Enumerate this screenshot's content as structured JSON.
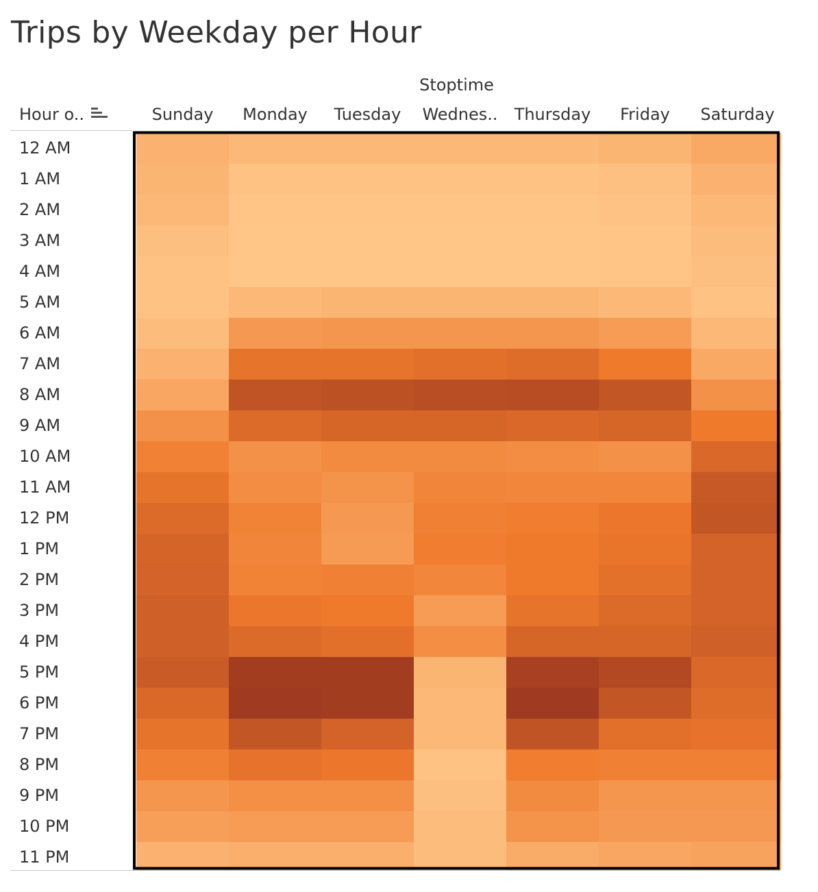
{
  "title": "Trips by Weekday per Hour",
  "column_group_label": "Stoptime",
  "row_header_label": "Hour o..",
  "row_header_icon": "sort-descending-icon",
  "chart_data": {
    "type": "heatmap",
    "title": "Trips by Weekday per Hour",
    "x_group_label": "Stoptime",
    "y_label": "Hour o..",
    "columns": [
      "Sunday",
      "Monday",
      "Tuesday",
      "Wednes..",
      "Thursday",
      "Friday",
      "Saturday"
    ],
    "rows": [
      "12 AM",
      "1 AM",
      "2 AM",
      "3 AM",
      "4 AM",
      "5 AM",
      "6 AM",
      "7 AM",
      "8 AM",
      "9 AM",
      "10 AM",
      "11 AM",
      "12 PM",
      "1 PM",
      "2 PM",
      "3 PM",
      "4 PM",
      "5 PM",
      "6 PM",
      "7 PM",
      "8 PM",
      "9 PM",
      "10 PM",
      "11 PM"
    ],
    "values": [
      [
        0.14,
        0.1,
        0.1,
        0.1,
        0.1,
        0.12,
        0.2
      ],
      [
        0.12,
        0.04,
        0.04,
        0.04,
        0.04,
        0.05,
        0.14
      ],
      [
        0.1,
        0.02,
        0.02,
        0.02,
        0.02,
        0.03,
        0.1
      ],
      [
        0.06,
        0.01,
        0.01,
        0.01,
        0.01,
        0.02,
        0.08
      ],
      [
        0.04,
        0.01,
        0.01,
        0.01,
        0.01,
        0.02,
        0.06
      ],
      [
        0.04,
        0.1,
        0.12,
        0.12,
        0.12,
        0.1,
        0.04
      ],
      [
        0.08,
        0.3,
        0.32,
        0.32,
        0.32,
        0.28,
        0.1
      ],
      [
        0.14,
        0.55,
        0.55,
        0.58,
        0.6,
        0.5,
        0.2
      ],
      [
        0.22,
        0.8,
        0.82,
        0.84,
        0.85,
        0.78,
        0.35
      ],
      [
        0.35,
        0.62,
        0.66,
        0.66,
        0.64,
        0.66,
        0.5
      ],
      [
        0.45,
        0.35,
        0.4,
        0.4,
        0.38,
        0.35,
        0.64
      ],
      [
        0.55,
        0.38,
        0.34,
        0.43,
        0.42,
        0.42,
        0.76
      ],
      [
        0.62,
        0.44,
        0.3,
        0.46,
        0.48,
        0.52,
        0.78
      ],
      [
        0.67,
        0.43,
        0.29,
        0.48,
        0.5,
        0.54,
        0.68
      ],
      [
        0.68,
        0.44,
        0.46,
        0.42,
        0.5,
        0.57,
        0.68
      ],
      [
        0.7,
        0.52,
        0.5,
        0.28,
        0.55,
        0.62,
        0.68
      ],
      [
        0.7,
        0.62,
        0.58,
        0.37,
        0.66,
        0.66,
        0.7
      ],
      [
        0.74,
        0.98,
        0.98,
        0.12,
        0.95,
        0.88,
        0.64
      ],
      [
        0.64,
        1.0,
        0.98,
        0.1,
        1.0,
        0.78,
        0.6
      ],
      [
        0.55,
        0.78,
        0.68,
        0.1,
        0.8,
        0.58,
        0.56
      ],
      [
        0.46,
        0.56,
        0.52,
        0.04,
        0.48,
        0.46,
        0.46
      ],
      [
        0.32,
        0.36,
        0.36,
        0.06,
        0.4,
        0.32,
        0.32
      ],
      [
        0.26,
        0.28,
        0.28,
        0.08,
        0.34,
        0.3,
        0.3
      ],
      [
        0.14,
        0.16,
        0.16,
        0.08,
        0.18,
        0.22,
        0.24
      ]
    ],
    "color_low": "#ffc88a",
    "color_mid": "#ef7a2c",
    "color_high": "#a03a20",
    "border_color": "#000000",
    "legend": "none"
  }
}
